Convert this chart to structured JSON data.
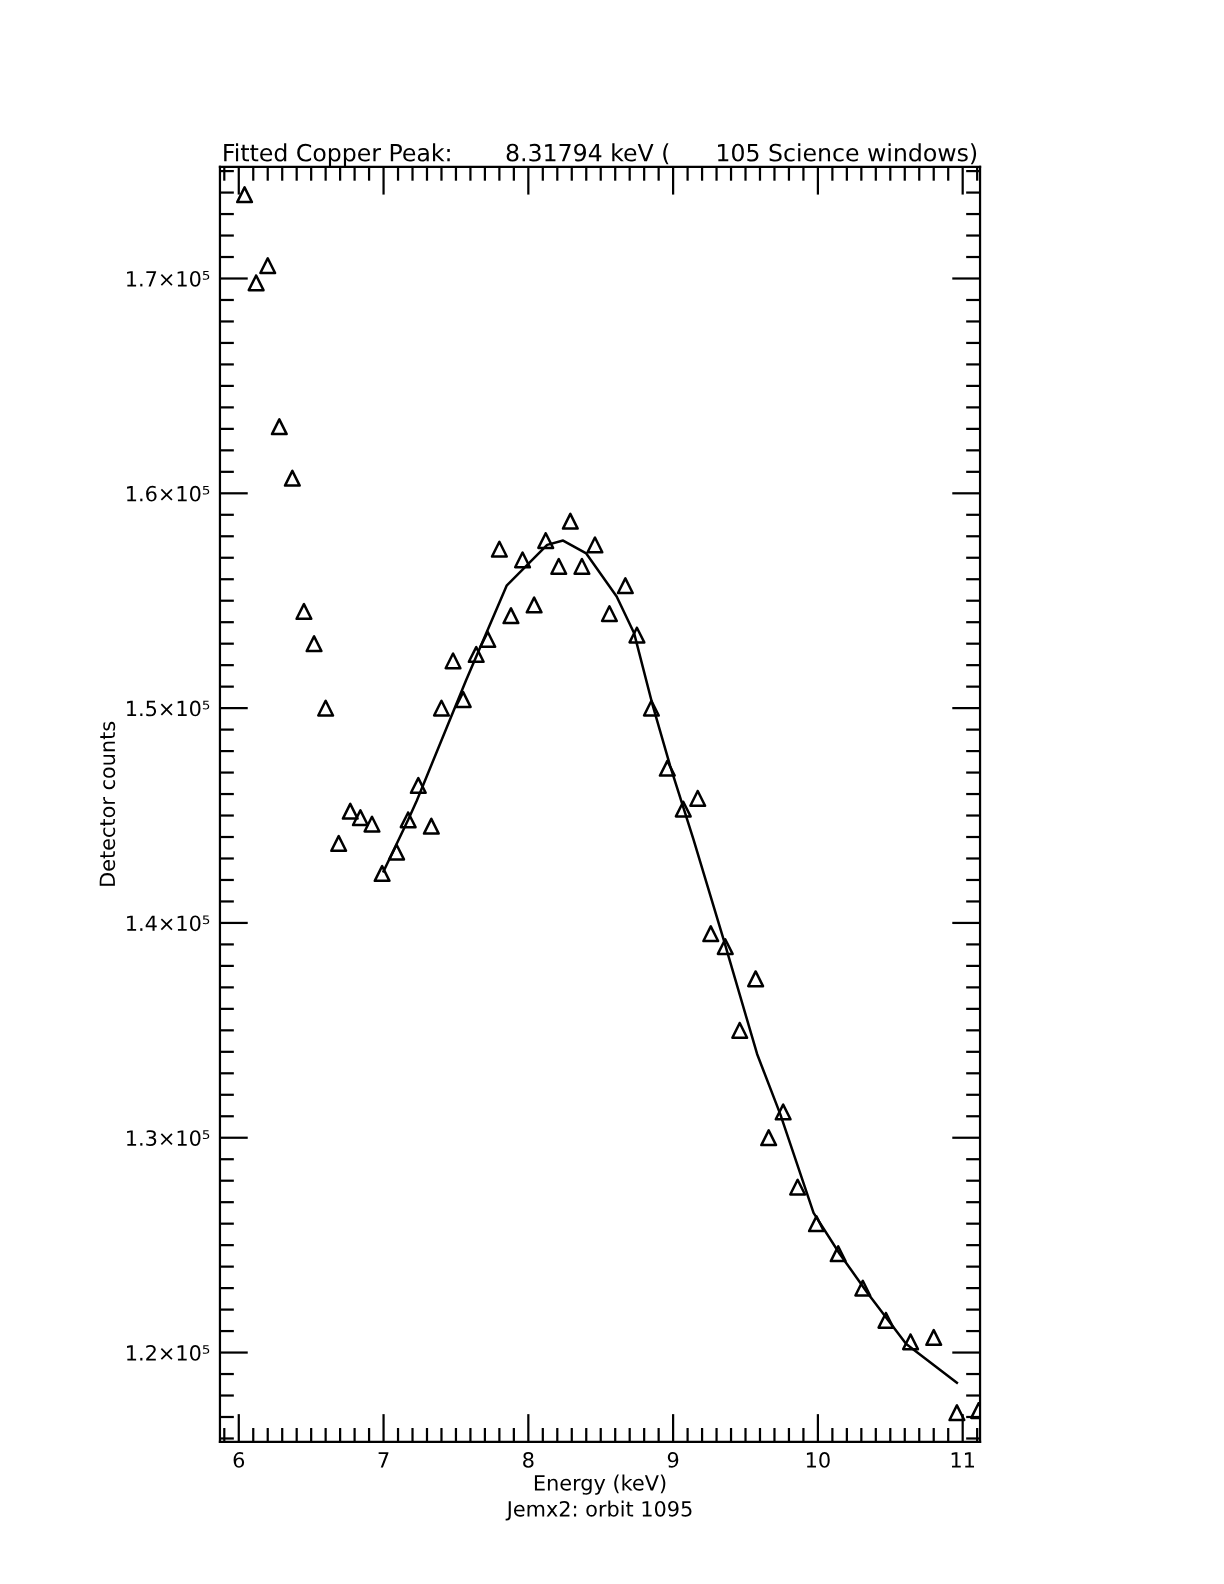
{
  "chart_data": {
    "type": "scatter",
    "title": "Fitted Copper Peak:       8.31794 keV (      105 Science windows)",
    "xlabel": "Energy (keV)",
    "ylabel": "Detector counts",
    "annotations": [
      "Jemx2: orbit 1095"
    ],
    "xlim": [
      5.87,
      11.12
    ],
    "xticks": [
      6,
      7,
      8,
      9,
      10,
      11
    ],
    "ylim": [
      115840,
      175200
    ],
    "yticks": [
      {
        "value": 120000,
        "label": "1.2×10⁵"
      },
      {
        "value": 130000,
        "label": "1.3×10⁵"
      },
      {
        "value": 140000,
        "label": "1.4×10⁵"
      },
      {
        "value": 150000,
        "label": "1.5×10⁵"
      },
      {
        "value": 160000,
        "label": "1.6×10⁵"
      },
      {
        "value": 170000,
        "label": "1.7×10⁵"
      }
    ],
    "grid": false,
    "legend": false,
    "series": [
      {
        "marker": "triangle",
        "color": "#000000",
        "x": [
          6.04,
          6.12,
          6.2,
          6.28,
          6.37,
          6.45,
          6.52,
          6.6,
          6.69,
          6.77,
          6.84,
          6.92,
          6.99,
          7.09,
          7.17,
          7.24,
          7.33,
          7.4,
          7.48,
          7.55,
          7.64,
          7.72,
          7.8,
          7.88,
          7.96,
          8.04,
          8.12,
          8.21,
          8.29,
          8.37,
          8.46,
          8.56,
          8.67,
          8.75,
          8.85,
          8.96,
          9.07,
          9.17,
          9.26,
          9.36,
          9.46,
          9.57,
          9.66,
          9.76,
          9.86,
          9.99,
          10.14,
          10.31,
          10.47,
          10.64,
          10.8,
          10.96,
          11.11
        ],
        "values": [
          173900,
          169800,
          170600,
          163100,
          160700,
          154500,
          153000,
          150000,
          143700,
          145200,
          144900,
          144600,
          142300,
          143300,
          144800,
          146400,
          144500,
          150000,
          152200,
          150400,
          152500,
          153200,
          157400,
          154300,
          156900,
          154800,
          157800,
          156600,
          158700,
          156600,
          157600,
          154400,
          155700,
          153400,
          150000,
          147200,
          145300,
          145800,
          139500,
          138900,
          135000,
          137400,
          130000,
          131200,
          127700,
          126000,
          124600,
          123000,
          121500,
          120500,
          120700,
          117200,
          117300
        ]
      },
      {
        "type": "line",
        "marker": "none",
        "line_style": "solid",
        "color": "#000000",
        "x": [
          7.0,
          7.17,
          7.23,
          7.57,
          7.85,
          8.13,
          8.24,
          8.4,
          8.61,
          8.73,
          8.86,
          8.98,
          9.14,
          9.35,
          9.58,
          9.74,
          9.97,
          10.15,
          10.34,
          10.61,
          10.96
        ],
        "values": [
          142400,
          144800,
          145700,
          151300,
          155700,
          157600,
          157800,
          157200,
          155200,
          153500,
          150100,
          147300,
          143900,
          139200,
          133900,
          131100,
          126500,
          124600,
          122800,
          120400,
          118600
        ]
      }
    ]
  }
}
